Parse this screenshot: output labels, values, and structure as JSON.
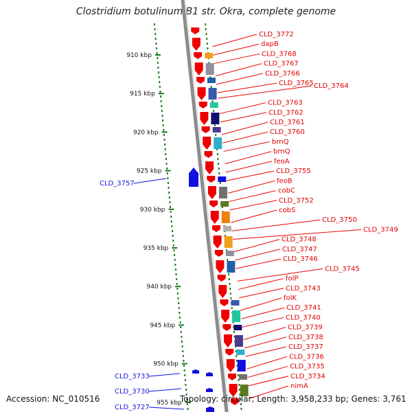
{
  "title": "Clostridium botulinum B1 str. Okra, complete genome",
  "footer": {
    "accession": "Accession: NC_010516",
    "topology": "Topology: circular; Length: 3,958,233 bp; Genes: 3,761"
  },
  "axis": {
    "ticks": [
      "910 kbp",
      "915 kbp",
      "920 kbp",
      "925 kbp",
      "930 kbp",
      "935 kbp",
      "940 kbp",
      "945 kbp",
      "950 kbp",
      "955 kbp"
    ]
  },
  "colors": {
    "cds_strand": "#ee0000",
    "minus_strand_gene": "#1010e0",
    "backbone": "#8c8c8c",
    "tick_mark": "#1a7a1a"
  },
  "labels_right": [
    "CLD_3772",
    "dapB",
    "CLD_3768",
    "CLD_3767",
    "CLD_3766",
    "CLD_3765",
    "CLD_3764",
    "CLD_3763",
    "CLD_3762",
    "CLD_3761",
    "CLD_3760",
    "brnQ",
    "brnQ",
    "feoA",
    "CLD_3755",
    "feoB",
    "cobC",
    "CLD_3752",
    "cobS",
    "CLD_3750",
    "CLD_3749",
    "CLD_3748",
    "CLD_3747",
    "CLD_3746",
    "CLD_3745",
    "folP",
    "CLD_3743",
    "folK",
    "CLD_3741",
    "CLD_3740",
    "CLD_3739",
    "CLD_3738",
    "CLD_3737",
    "CLD_3736",
    "CLD_3735",
    "CLD_3734",
    "nimA"
  ],
  "labels_left": [
    "CLD_3757",
    "CLD_3733",
    "CLD_3730",
    "CLD_3727"
  ]
}
